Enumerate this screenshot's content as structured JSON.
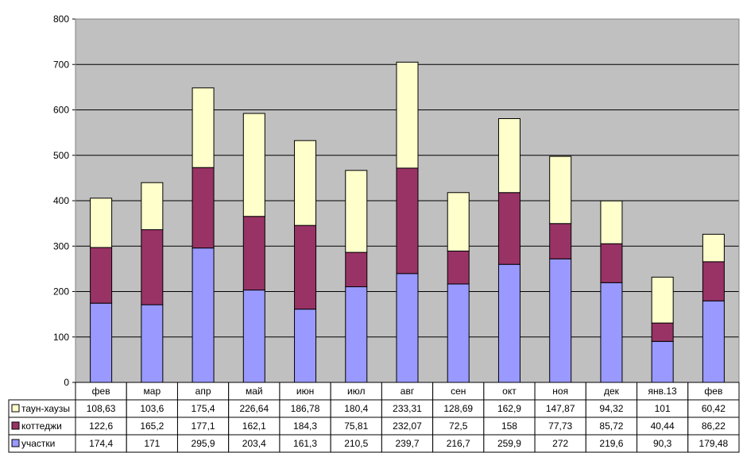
{
  "chart_data": {
    "type": "bar",
    "stacked": true,
    "categories": [
      "фев",
      "мар",
      "апр",
      "май",
      "июн",
      "июл",
      "авг",
      "сен",
      "окт",
      "ноя",
      "дек",
      "янв.13",
      "фев"
    ],
    "series": [
      {
        "name": "участки",
        "color": "#9999ff",
        "values": [
          174.4,
          171,
          295.9,
          203.4,
          161.3,
          210.5,
          239.7,
          216.7,
          259.9,
          272,
          219.6,
          90.3,
          179.48
        ],
        "labels": [
          "174,4",
          "171",
          "295,9",
          "203,4",
          "161,3",
          "210,5",
          "239,7",
          "216,7",
          "259,9",
          "272",
          "219,6",
          "90,3",
          "179,48"
        ]
      },
      {
        "name": "коттеджи",
        "color": "#993366",
        "values": [
          122.6,
          165.2,
          177.1,
          162.1,
          184.3,
          75.81,
          232.07,
          72.5,
          158,
          77.73,
          85.72,
          40.44,
          86.22
        ],
        "labels": [
          "122,6",
          "165,2",
          "177,1",
          "162,1",
          "184,3",
          "75,81",
          "232,07",
          "72,5",
          "158",
          "77,73",
          "85,72",
          "40,44",
          "86,22"
        ]
      },
      {
        "name": "таун-хаузы",
        "color": "#ffffcc",
        "values": [
          108.63,
          103.6,
          175.4,
          226.64,
          186.78,
          180.4,
          233.31,
          128.69,
          162.9,
          147.87,
          94.32,
          101,
          60.42
        ],
        "labels": [
          "108,63",
          "103,6",
          "175,4",
          "226,64",
          "186,78",
          "180,4",
          "233,31",
          "128,69",
          "162,9",
          "147,87",
          "94,32",
          "101",
          "60,42"
        ]
      }
    ],
    "table_row_order": [
      "таун-хаузы",
      "коттеджи",
      "участки"
    ],
    "ylim": [
      0,
      800
    ],
    "yticks": [
      "0",
      "100",
      "200",
      "300",
      "400",
      "500",
      "600",
      "700",
      "800"
    ],
    "grid": true,
    "plot_background": "#c0c0c0",
    "legend": "data-table-left"
  }
}
